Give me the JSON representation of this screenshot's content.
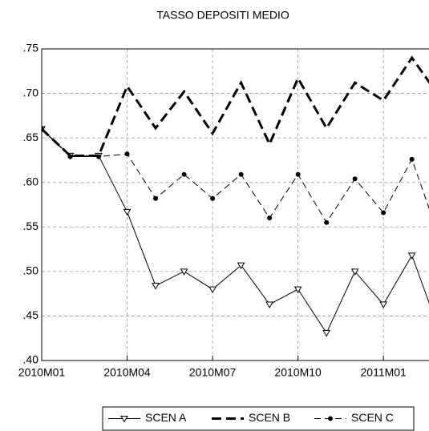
{
  "chart_data": {
    "type": "line",
    "title": "TASSO DEPOSITI MEDIO",
    "categories": [
      "2010M01",
      null,
      null,
      "2010M04",
      null,
      null,
      "2010M07",
      null,
      null,
      "2010M10",
      null,
      null,
      "2011M01",
      null,
      null
    ],
    "xlim": [
      0,
      13.6
    ],
    "ylim": [
      0.4,
      0.75
    ],
    "yticks": [
      {
        "value": 0.4,
        "label": ".40"
      },
      {
        "value": 0.45,
        "label": ".45"
      },
      {
        "value": 0.5,
        "label": ".50"
      },
      {
        "value": 0.55,
        "label": ".55"
      },
      {
        "value": 0.6,
        "label": ".60"
      },
      {
        "value": 0.65,
        "label": ".65"
      },
      {
        "value": 0.7,
        "label": ".70"
      },
      {
        "value": 0.75,
        "label": ".75"
      }
    ],
    "grid": true,
    "legend": "bottom",
    "series": [
      {
        "name": "SCEN A",
        "color": "#000000",
        "width": 1,
        "dash": "solid",
        "marker": "triangle-down",
        "values": [
          0.66,
          0.63,
          0.63,
          0.567,
          0.484,
          0.5,
          0.48,
          0.507,
          0.463,
          0.48,
          0.431,
          0.5,
          0.463,
          0.518,
          0.43
        ]
      },
      {
        "name": "SCEN B",
        "color": "#000000",
        "width": 3,
        "dash": "long",
        "marker": "none",
        "values": [
          0.66,
          0.63,
          0.63,
          0.708,
          0.661,
          0.702,
          0.655,
          0.712,
          0.643,
          0.717,
          0.661,
          0.712,
          0.692,
          0.74,
          0.695
        ]
      },
      {
        "name": "SCEN C",
        "color": "#000000",
        "width": 1,
        "dash": "medium",
        "marker": "dot",
        "values": [
          0.66,
          0.629,
          0.629,
          0.632,
          0.582,
          0.609,
          0.582,
          0.609,
          0.56,
          0.609,
          0.555,
          0.604,
          0.566,
          0.626,
          0.535
        ]
      }
    ]
  }
}
